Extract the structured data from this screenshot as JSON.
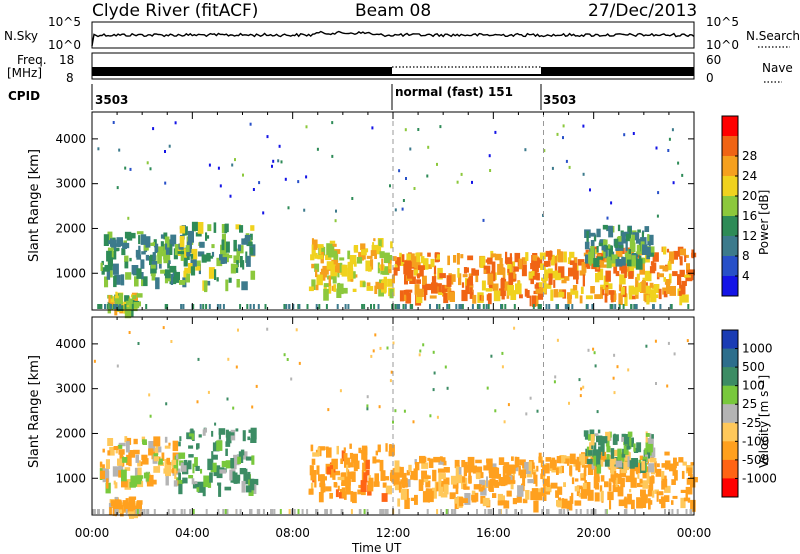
{
  "header": {
    "station": "Clyde River (fitACF)",
    "beam": "Beam 08",
    "date": "27/Dec/2013"
  },
  "top_panels": {
    "nsky_label": "N.Sky",
    "nsky_ticks": [
      "10^5",
      "10^0"
    ],
    "nsearch_label": "N.Search",
    "nsearch_ticks": [
      "10^5",
      "10^0"
    ],
    "freq_label": "Freq.",
    "freq_unit": "[MHz]",
    "freq_ticks": [
      "18",
      "8"
    ],
    "nave_label": "Nave",
    "nave_ticks": [
      "60",
      "0"
    ],
    "cpid_label": "CPID",
    "cpid_segments": [
      "3503",
      "normal (fast) 151",
      "3503"
    ]
  },
  "chart_data": [
    {
      "type": "heatmap",
      "panel": "power",
      "x_start": "00:00",
      "x_end": "00:00",
      "xticks": [
        "00:00",
        "04:00",
        "08:00",
        "12:00",
        "16:00",
        "20:00",
        "00:00"
      ],
      "ylabel": "Slant Range [km]",
      "yticks": [
        1000,
        2000,
        3000,
        4000
      ],
      "ylim": [
        180,
        4600
      ],
      "colorbar_label": "Power [dB]",
      "colorbar_ticks": [
        "4",
        "8",
        "12",
        "16",
        "20",
        "24",
        "28"
      ],
      "colorbar_colors": [
        "#1414e6",
        "#2850c8",
        "#3c7a8c",
        "#2e8b57",
        "#8cc83c",
        "#f0d21e",
        "#f5a01e",
        "#f06414",
        "#ff0000"
      ],
      "blobs": [
        {
          "t0": 0.3,
          "t1": 3.4,
          "r0": 900,
          "r1": 1950,
          "value": 14
        },
        {
          "t0": 3.4,
          "t1": 6.4,
          "r0": 800,
          "r1": 2150,
          "value": 16
        },
        {
          "t0": 0.6,
          "t1": 1.8,
          "r0": 250,
          "r1": 600,
          "value": 20
        },
        {
          "t0": 8.6,
          "t1": 12.0,
          "r0": 650,
          "r1": 1800,
          "value": 22
        },
        {
          "t0": 12.0,
          "t1": 17.8,
          "r0": 500,
          "r1": 1500,
          "value": 28
        },
        {
          "t0": 17.8,
          "t1": 23.9,
          "r0": 500,
          "r1": 1600,
          "value": 26
        },
        {
          "t0": 19.6,
          "t1": 22.3,
          "r0": 1300,
          "r1": 2100,
          "value": 14
        }
      ]
    },
    {
      "type": "heatmap",
      "panel": "velocity",
      "x_start": "00:00",
      "x_end": "00:00",
      "xticks": [
        "00:00",
        "04:00",
        "08:00",
        "12:00",
        "16:00",
        "20:00",
        "00:00"
      ],
      "xlabel": "Time UT",
      "ylabel": "Slant Range [km]",
      "yticks": [
        1000,
        2000,
        3000,
        4000
      ],
      "ylim": [
        180,
        4600
      ],
      "colorbar_label": "Velocity [m s⁻¹]",
      "colorbar_ticks": [
        "1000",
        "500",
        "100",
        "25",
        "-25",
        "-100",
        "-500",
        "-1000"
      ],
      "colorbar_colors": [
        "#1a3cb4",
        "#2d6e8c",
        "#3c8c64",
        "#78c83c",
        "#b4b4b4",
        "#ffc85a",
        "#ffa01e",
        "#ff6414",
        "#ff0000"
      ],
      "blobs": [
        {
          "t0": 0.3,
          "t1": 3.4,
          "r0": 900,
          "r1": 1950,
          "value": -60
        },
        {
          "t0": 3.4,
          "t1": 6.4,
          "r0": 800,
          "r1": 2150,
          "value": 150
        },
        {
          "t0": 0.6,
          "t1": 1.8,
          "r0": 250,
          "r1": 600,
          "value": -150
        },
        {
          "t0": 8.6,
          "t1": 12.0,
          "r0": 650,
          "r1": 1800,
          "value": -300
        },
        {
          "t0": 12.0,
          "t1": 17.8,
          "r0": 500,
          "r1": 1500,
          "value": -200
        },
        {
          "t0": 17.8,
          "t1": 23.9,
          "r0": 500,
          "r1": 1600,
          "value": -250
        },
        {
          "t0": 19.6,
          "t1": 22.3,
          "r0": 1300,
          "r1": 2100,
          "value": 80
        }
      ]
    }
  ]
}
